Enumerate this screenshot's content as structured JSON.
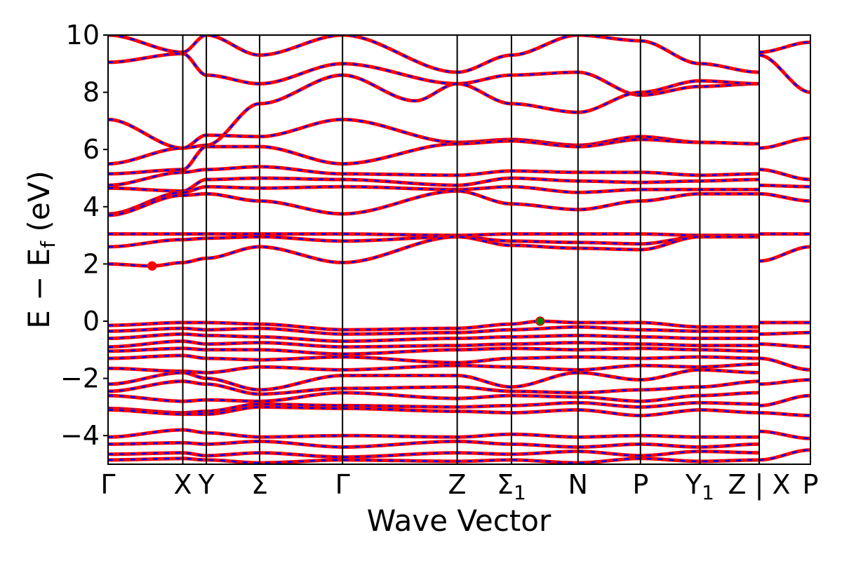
{
  "chart_data": {
    "type": "line",
    "xlabel": "Wave Vector",
    "ylabel_parts": [
      "E",
      "−",
      "E",
      "f",
      "(eV)"
    ],
    "ylim": [
      -5,
      10
    ],
    "yticks": [
      -4,
      -2,
      0,
      2,
      4,
      6,
      8,
      10
    ],
    "ytick_labels": [
      "−4",
      "−2",
      "0",
      "2",
      "4",
      "6",
      "8",
      "10"
    ],
    "kpath": [
      {
        "label": "Γ",
        "x": 0.0
      },
      {
        "label": "X",
        "x": 0.73
      },
      {
        "label": "Y",
        "x": 0.96
      },
      {
        "label": "Σ",
        "x": 1.48
      },
      {
        "label": "Γ",
        "x": 2.29
      },
      {
        "label": "Z",
        "x": 3.41
      },
      {
        "label": "Σ",
        "sub": "1",
        "x": 3.94
      },
      {
        "label": "N",
        "x": 4.59
      },
      {
        "label": "P",
        "x": 5.2
      },
      {
        "label": "Y",
        "sub": "1",
        "x": 5.78
      },
      {
        "label": "Z | X",
        "x": 6.36
      },
      {
        "label": "P",
        "x": 6.86
      }
    ],
    "xlim": [
      0.0,
      6.86
    ],
    "markers": [
      {
        "x": 0.43,
        "y": 1.93,
        "color": "#ff0000"
      },
      {
        "x": 4.22,
        "y": 0.0,
        "color": "#008000"
      }
    ],
    "bands": [
      {
        "x": [
          0.0,
          0.73,
          0.96,
          1.48,
          2.29,
          3.41,
          3.94,
          4.59,
          5.2,
          5.78,
          6.36
        ],
        "y": [
          10.0,
          9.4,
          10.0,
          9.3,
          10.0,
          8.7,
          9.3,
          10.0,
          9.8,
          9.0,
          8.7
        ]
      },
      {
        "x": [
          0.0,
          0.73,
          0.96,
          1.48,
          2.29,
          3.41,
          3.94,
          4.59,
          5.2,
          5.78,
          6.36
        ],
        "y": [
          9.05,
          9.35,
          8.6,
          8.3,
          9.0,
          8.3,
          8.6,
          8.7,
          7.9,
          8.2,
          8.3
        ]
      },
      {
        "x": [
          0.0,
          0.73,
          0.96,
          1.48,
          2.29,
          3.0,
          3.41,
          3.94,
          4.59,
          5.2,
          5.78,
          6.36
        ],
        "y": [
          7.05,
          6.05,
          6.15,
          7.6,
          8.6,
          7.7,
          8.3,
          7.6,
          7.3,
          8.0,
          8.4,
          8.3
        ]
      },
      {
        "x": [
          0.0,
          0.73,
          0.96,
          1.48,
          2.29,
          3.41,
          3.94,
          4.59,
          5.2,
          5.78,
          6.36
        ],
        "y": [
          5.5,
          6.05,
          6.5,
          6.45,
          7.05,
          6.25,
          6.35,
          6.15,
          6.45,
          6.25,
          6.2
        ]
      },
      {
        "x": [
          0.0,
          0.73,
          0.96,
          1.48,
          2.29,
          3.41,
          3.94,
          4.59,
          5.2,
          5.78,
          6.36
        ],
        "y": [
          5.15,
          5.3,
          6.1,
          6.1,
          5.5,
          6.2,
          6.3,
          6.1,
          6.35,
          6.25,
          6.2
        ]
      },
      {
        "x": [
          0.0,
          0.73,
          0.96,
          1.48,
          2.29,
          3.41,
          3.94,
          4.59,
          5.2,
          5.78,
          6.36
        ],
        "y": [
          4.75,
          5.2,
          5.3,
          5.4,
          5.15,
          5.1,
          5.25,
          5.2,
          5.2,
          5.1,
          5.15
        ]
      },
      {
        "x": [
          0.0,
          0.73,
          0.96,
          1.48,
          2.29,
          3.41,
          3.94,
          4.59,
          5.2,
          5.78,
          6.36
        ],
        "y": [
          4.65,
          4.55,
          4.95,
          5.0,
          4.95,
          4.75,
          5.0,
          4.9,
          4.85,
          4.9,
          4.95
        ]
      },
      {
        "x": [
          0.0,
          0.73,
          0.96,
          1.48,
          2.29,
          3.41,
          3.94,
          4.59,
          5.2,
          5.78,
          6.36
        ],
        "y": [
          3.75,
          4.5,
          4.7,
          4.65,
          4.7,
          4.6,
          4.7,
          4.5,
          4.6,
          4.6,
          4.6
        ]
      },
      {
        "x": [
          0.0,
          0.73,
          0.96,
          1.48,
          2.29,
          3.41,
          3.94,
          4.59,
          5.2,
          5.78,
          6.36
        ],
        "y": [
          3.7,
          4.4,
          4.45,
          4.2,
          3.75,
          4.55,
          4.1,
          3.9,
          4.2,
          4.45,
          4.45
        ]
      },
      {
        "x": [
          0.0,
          0.73,
          0.96,
          1.48,
          2.29,
          3.41,
          3.94,
          4.59,
          5.2,
          5.78,
          6.36
        ],
        "y": [
          3.05,
          3.05,
          3.05,
          3.05,
          3.05,
          3.0,
          3.05,
          3.05,
          3.05,
          3.0,
          3.0
        ]
      },
      {
        "x": [
          0.0,
          0.73,
          0.96,
          1.48,
          2.29,
          3.41,
          3.94,
          4.59,
          5.2,
          5.78,
          6.36
        ],
        "y": [
          2.6,
          2.85,
          2.9,
          2.95,
          2.8,
          2.95,
          2.8,
          2.75,
          2.7,
          2.95,
          2.95
        ]
      },
      {
        "x": [
          0.0,
          0.43,
          0.73,
          0.96,
          1.48,
          2.29,
          3.41,
          3.94,
          4.59,
          5.2,
          5.78,
          6.36
        ],
        "y": [
          2.0,
          1.93,
          2.05,
          2.2,
          2.6,
          2.05,
          2.95,
          2.65,
          2.55,
          2.5,
          2.95,
          2.95
        ]
      },
      {
        "x": [
          0.0,
          0.73,
          0.96,
          1.48,
          2.29,
          3.41,
          3.94,
          4.22,
          4.59,
          5.2,
          5.78,
          6.36
        ],
        "y": [
          -0.15,
          -0.05,
          -0.05,
          -0.1,
          -0.3,
          -0.25,
          -0.1,
          0.0,
          -0.05,
          -0.05,
          -0.2,
          -0.2
        ]
      },
      {
        "x": [
          0.0,
          0.73,
          0.96,
          1.48,
          2.29,
          3.41,
          3.94,
          4.59,
          5.2,
          5.78,
          6.36
        ],
        "y": [
          -0.35,
          -0.25,
          -0.3,
          -0.25,
          -0.45,
          -0.4,
          -0.3,
          -0.2,
          -0.3,
          -0.35,
          -0.35
        ]
      },
      {
        "x": [
          0.0,
          0.73,
          0.96,
          1.48,
          2.29,
          3.41,
          3.94,
          4.59,
          5.2,
          5.78,
          6.36
        ],
        "y": [
          -0.6,
          -0.45,
          -0.5,
          -0.55,
          -0.7,
          -0.6,
          -0.55,
          -0.5,
          -0.55,
          -0.6,
          -0.6
        ]
      },
      {
        "x": [
          0.0,
          0.73,
          0.96,
          1.48,
          2.29,
          3.41,
          3.94,
          4.59,
          5.2,
          5.78,
          6.36
        ],
        "y": [
          -0.9,
          -0.7,
          -0.8,
          -0.75,
          -0.9,
          -0.85,
          -0.8,
          -0.75,
          -0.8,
          -0.85,
          -0.85
        ]
      },
      {
        "x": [
          0.0,
          0.73,
          0.96,
          1.48,
          2.29,
          3.41,
          3.94,
          4.59,
          5.2,
          5.78,
          6.36
        ],
        "y": [
          -1.05,
          -0.95,
          -1.0,
          -1.0,
          -1.15,
          -1.0,
          -0.95,
          -1.0,
          -0.95,
          -1.0,
          -1.05
        ]
      },
      {
        "x": [
          0.0,
          0.73,
          0.96,
          1.48,
          2.29,
          3.41,
          3.94,
          4.59,
          5.2,
          5.78,
          6.36
        ],
        "y": [
          -1.3,
          -1.2,
          -1.3,
          -1.35,
          -1.25,
          -1.45,
          -1.3,
          -1.25,
          -1.3,
          -1.25,
          -1.3
        ]
      },
      {
        "x": [
          0.0,
          0.73,
          0.96,
          1.48,
          2.29,
          3.41,
          3.94,
          4.59,
          5.2,
          5.78,
          6.36
        ],
        "y": [
          -1.65,
          -1.75,
          -1.8,
          -1.6,
          -1.7,
          -1.55,
          -1.6,
          -1.7,
          -1.55,
          -1.6,
          -1.5
        ]
      },
      {
        "x": [
          0.0,
          0.73,
          0.96,
          1.48,
          2.29,
          3.41,
          3.94,
          4.59,
          5.2,
          5.78,
          6.36
        ],
        "y": [
          -2.2,
          -1.8,
          -2.0,
          -2.4,
          -1.9,
          -1.9,
          -2.3,
          -1.8,
          -2.05,
          -1.7,
          -1.8
        ]
      },
      {
        "x": [
          0.0,
          0.73,
          0.96,
          1.48,
          2.29,
          3.41,
          3.94,
          4.59,
          5.2,
          5.78,
          6.36
        ],
        "y": [
          -2.45,
          -2.1,
          -2.2,
          -2.55,
          -2.35,
          -2.3,
          -2.45,
          -2.5,
          -2.4,
          -2.3,
          -2.1
        ]
      },
      {
        "x": [
          0.0,
          0.73,
          0.96,
          1.48,
          2.29,
          3.41,
          3.94,
          4.59,
          5.2,
          5.78,
          6.36
        ],
        "y": [
          -2.6,
          -2.8,
          -2.75,
          -2.8,
          -2.5,
          -2.7,
          -2.6,
          -2.65,
          -2.8,
          -2.6,
          -2.5
        ]
      },
      {
        "x": [
          0.0,
          0.73,
          0.96,
          1.48,
          2.29,
          3.41,
          3.94,
          4.59,
          5.2,
          5.78,
          6.36
        ],
        "y": [
          -3.05,
          -3.2,
          -3.15,
          -2.9,
          -2.95,
          -3.0,
          -2.95,
          -2.85,
          -3.0,
          -2.85,
          -2.9
        ]
      },
      {
        "x": [
          0.0,
          0.73,
          0.96,
          1.48,
          2.29,
          3.41,
          3.94,
          4.59,
          5.2,
          5.78,
          6.36
        ],
        "y": [
          -3.1,
          -3.25,
          -3.25,
          -3.0,
          -3.05,
          -3.15,
          -3.2,
          -3.1,
          -3.3,
          -3.1,
          -3.2
        ]
      },
      {
        "x": [
          0.0,
          0.73,
          0.96,
          1.48,
          2.29,
          3.41,
          3.94,
          4.59,
          5.2,
          5.78,
          6.36
        ],
        "y": [
          -4.05,
          -3.8,
          -3.9,
          -4.05,
          -4.0,
          -4.05,
          -3.95,
          -4.05,
          -4.0,
          -4.05,
          -4.05
        ]
      },
      {
        "x": [
          0.0,
          0.73,
          0.96,
          1.48,
          2.29,
          3.41,
          3.94,
          4.59,
          5.2,
          5.78,
          6.36
        ],
        "y": [
          -4.3,
          -4.25,
          -4.3,
          -4.2,
          -4.4,
          -4.2,
          -4.3,
          -4.4,
          -4.3,
          -4.4,
          -4.3
        ]
      },
      {
        "x": [
          0.0,
          0.73,
          0.96,
          1.48,
          2.29,
          3.41,
          3.94,
          4.59,
          5.2,
          5.78,
          6.36
        ],
        "y": [
          -4.65,
          -4.6,
          -4.7,
          -4.6,
          -4.75,
          -4.6,
          -4.65,
          -4.55,
          -4.7,
          -4.55,
          -4.6
        ]
      },
      {
        "x": [
          0.0,
          0.73,
          0.96,
          1.48,
          2.29,
          3.41,
          3.94,
          4.59,
          5.2,
          5.78,
          6.36
        ],
        "y": [
          -4.85,
          -4.8,
          -4.85,
          -4.95,
          -4.85,
          -4.9,
          -4.85,
          -4.95,
          -4.8,
          -4.9,
          -4.85
        ]
      },
      {
        "x": [
          6.36,
          6.86
        ],
        "y": [
          9.4,
          9.75
        ]
      },
      {
        "x": [
          6.36,
          6.86
        ],
        "y": [
          9.3,
          8.0
        ]
      },
      {
        "x": [
          6.36,
          6.86
        ],
        "y": [
          6.05,
          6.4
        ]
      },
      {
        "x": [
          6.36,
          6.86
        ],
        "y": [
          5.3,
          4.95
        ]
      },
      {
        "x": [
          6.36,
          6.86
        ],
        "y": [
          4.75,
          4.7
        ]
      },
      {
        "x": [
          6.36,
          6.86
        ],
        "y": [
          4.45,
          4.2
        ]
      },
      {
        "x": [
          6.36,
          6.86
        ],
        "y": [
          3.05,
          3.05
        ]
      },
      {
        "x": [
          6.36,
          6.86
        ],
        "y": [
          2.1,
          2.6
        ]
      },
      {
        "x": [
          6.36,
          6.86
        ],
        "y": [
          -0.05,
          -0.05
        ]
      },
      {
        "x": [
          6.36,
          6.86
        ],
        "y": [
          -0.45,
          -0.4
        ]
      },
      {
        "x": [
          6.36,
          6.86
        ],
        "y": [
          -0.8,
          -0.9
        ]
      },
      {
        "x": [
          6.36,
          6.86
        ],
        "y": [
          -1.3,
          -1.7
        ]
      },
      {
        "x": [
          6.36,
          6.86
        ],
        "y": [
          -2.2,
          -2.05
        ]
      },
      {
        "x": [
          6.36,
          6.86
        ],
        "y": [
          -2.95,
          -2.6
        ]
      },
      {
        "x": [
          6.36,
          6.86
        ],
        "y": [
          -3.2,
          -3.3
        ]
      },
      {
        "x": [
          6.36,
          6.86
        ],
        "y": [
          -3.85,
          -4.1
        ]
      },
      {
        "x": [
          6.36,
          6.86
        ],
        "y": [
          -4.85,
          -4.5
        ]
      }
    ]
  }
}
